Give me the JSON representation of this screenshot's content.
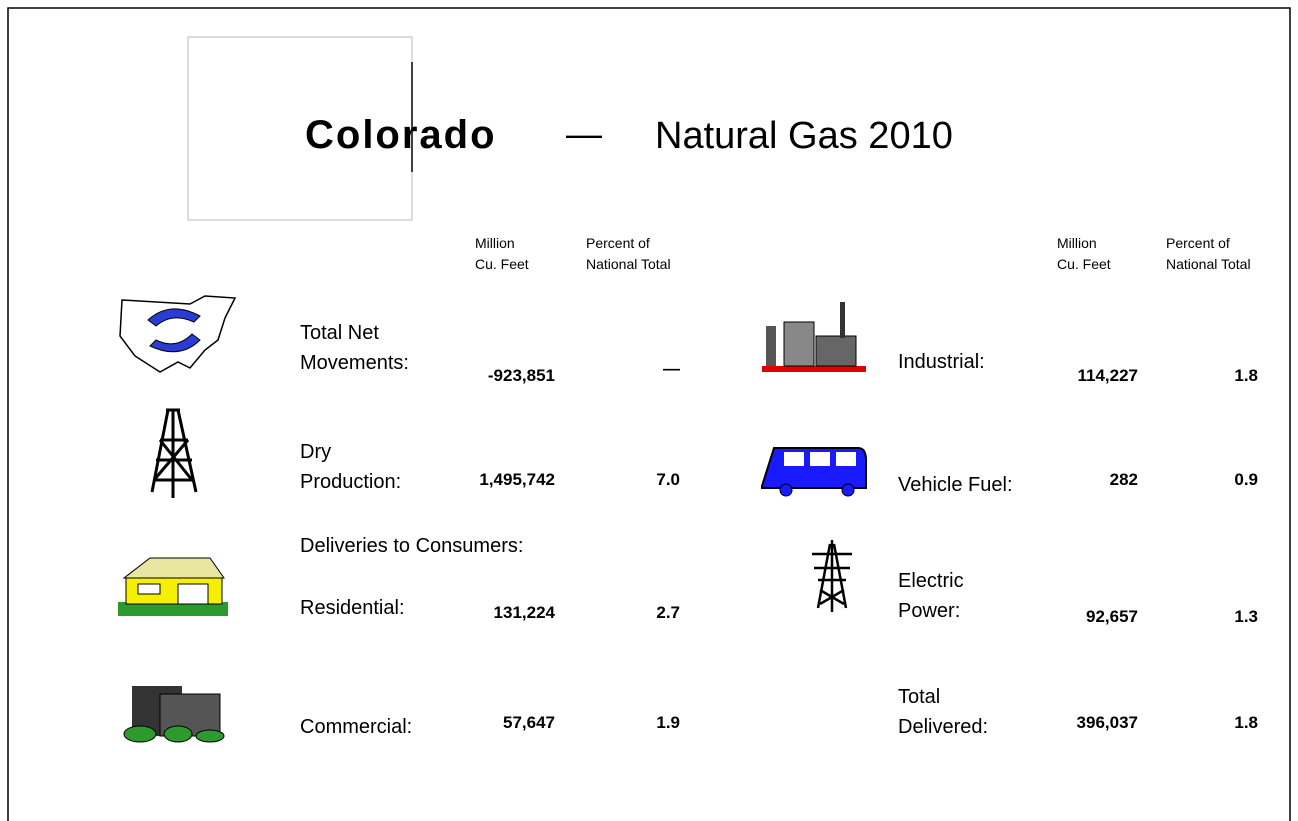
{
  "title": {
    "state": "Colorado",
    "dash": "—",
    "subtitle": "Natural Gas 2010"
  },
  "columns": {
    "left": {
      "units": [
        "Million",
        "Cu. Feet"
      ],
      "percent": [
        "Percent of",
        "National Total"
      ]
    },
    "right": {
      "units": [
        "Million",
        "Cu. Feet"
      ],
      "percent": [
        "Percent of",
        "National Total"
      ]
    }
  },
  "left_rows": [
    {
      "label": [
        "Total Net",
        "Movements:"
      ],
      "volume": "-923,851",
      "percent": "—"
    },
    {
      "label": [
        "Dry",
        "Production:"
      ],
      "volume": "1,495,742",
      "percent": "7.0"
    },
    {
      "label": [
        "Residential:"
      ],
      "volume": "131,224",
      "percent": "2.7"
    },
    {
      "label": [
        "Commercial:"
      ],
      "volume": "57,647",
      "percent": "1.9"
    }
  ],
  "section_label": "Deliveries to Consumers:",
  "right_rows": [
    {
      "label": [
        "Industrial:"
      ],
      "volume": "114,227",
      "percent": "1.8"
    },
    {
      "label": [
        "Vehicle Fuel:"
      ],
      "volume": "282",
      "percent": "0.9"
    },
    {
      "label": [
        "Electric",
        "Power:"
      ],
      "volume": "92,657",
      "percent": "1.3"
    },
    {
      "label": [
        "Total",
        "Delivered:"
      ],
      "volume": "396,037",
      "percent": "1.8"
    }
  ]
}
